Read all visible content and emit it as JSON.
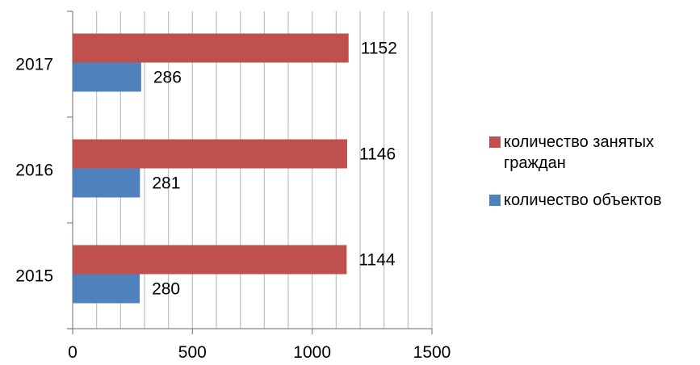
{
  "chart_data": {
    "type": "bar",
    "orientation": "horizontal",
    "categories": [
      "2015",
      "2016",
      "2017"
    ],
    "series": [
      {
        "name": "количество занятых граждан",
        "values": [
          1144,
          1146,
          1152
        ],
        "color": "#C0504D"
      },
      {
        "name": "количество объектов",
        "values": [
          280,
          281,
          286
        ],
        "color": "#4F81BD"
      }
    ],
    "xlim": [
      0,
      1500
    ],
    "xticks": [
      "0",
      "500",
      "1000",
      "1500"
    ],
    "grid": true,
    "legend_position": "right"
  }
}
